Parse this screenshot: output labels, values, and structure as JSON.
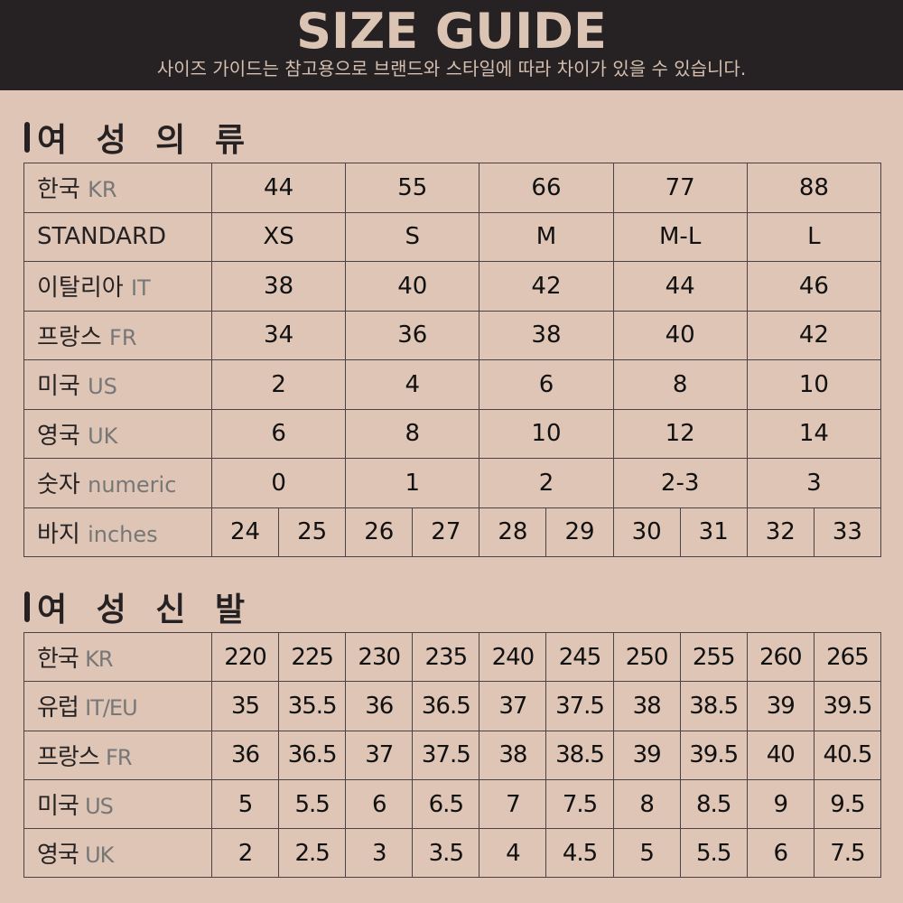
{
  "header": {
    "title": "SIZE GUIDE",
    "subtitle": "사이즈 가이드는 참고용으로 브랜드와 스타일에 따라 차이가 있을 수 있습니다."
  },
  "colors": {
    "header_bg": "#262223",
    "page_bg": "#dec5b5",
    "title_text": "#dcc4b4"
  },
  "womens_clothing": {
    "title": "여 성 의 류",
    "rows": [
      {
        "ko": "한국",
        "en": "KR",
        "values": [
          "44",
          "55",
          "66",
          "77",
          "88"
        ]
      },
      {
        "ko": "STANDARD",
        "en": "",
        "values": [
          "XS",
          "S",
          "M",
          "M-L",
          "L"
        ]
      },
      {
        "ko": "이탈리아",
        "en": "IT",
        "values": [
          "38",
          "40",
          "42",
          "44",
          "46"
        ]
      },
      {
        "ko": "프랑스",
        "en": "FR",
        "values": [
          "34",
          "36",
          "38",
          "40",
          "42"
        ]
      },
      {
        "ko": "미국",
        "en": "US",
        "values": [
          "2",
          "4",
          "6",
          "8",
          "10"
        ]
      },
      {
        "ko": "영국",
        "en": "UK",
        "values": [
          "6",
          "8",
          "10",
          "12",
          "14"
        ]
      },
      {
        "ko": "숫자",
        "en": "numeric",
        "values": [
          "0",
          "1",
          "2",
          "2-3",
          "3"
        ]
      }
    ],
    "pants": {
      "ko": "바지",
      "en": "inches",
      "values": [
        "24",
        "25",
        "26",
        "27",
        "28",
        "29",
        "30",
        "31",
        "32",
        "33"
      ]
    }
  },
  "womens_shoes": {
    "title": "여 성 신 발",
    "rows": [
      {
        "ko": "한국",
        "en": "KR",
        "values": [
          "220",
          "225",
          "230",
          "235",
          "240",
          "245",
          "250",
          "255",
          "260",
          "265"
        ]
      },
      {
        "ko": "유럽",
        "en": "IT/EU",
        "values": [
          "35",
          "35.5",
          "36",
          "36.5",
          "37",
          "37.5",
          "38",
          "38.5",
          "39",
          "39.5"
        ]
      },
      {
        "ko": "프랑스",
        "en": "FR",
        "values": [
          "36",
          "36.5",
          "37",
          "37.5",
          "38",
          "38.5",
          "39",
          "39.5",
          "40",
          "40.5"
        ]
      },
      {
        "ko": "미국",
        "en": "US",
        "values": [
          "5",
          "5.5",
          "6",
          "6.5",
          "7",
          "7.5",
          "8",
          "8.5",
          "9",
          "9.5"
        ]
      },
      {
        "ko": "영국",
        "en": "UK",
        "values": [
          "2",
          "2.5",
          "3",
          "3.5",
          "4",
          "4.5",
          "5",
          "5.5",
          "6",
          "7.5"
        ]
      }
    ]
  }
}
